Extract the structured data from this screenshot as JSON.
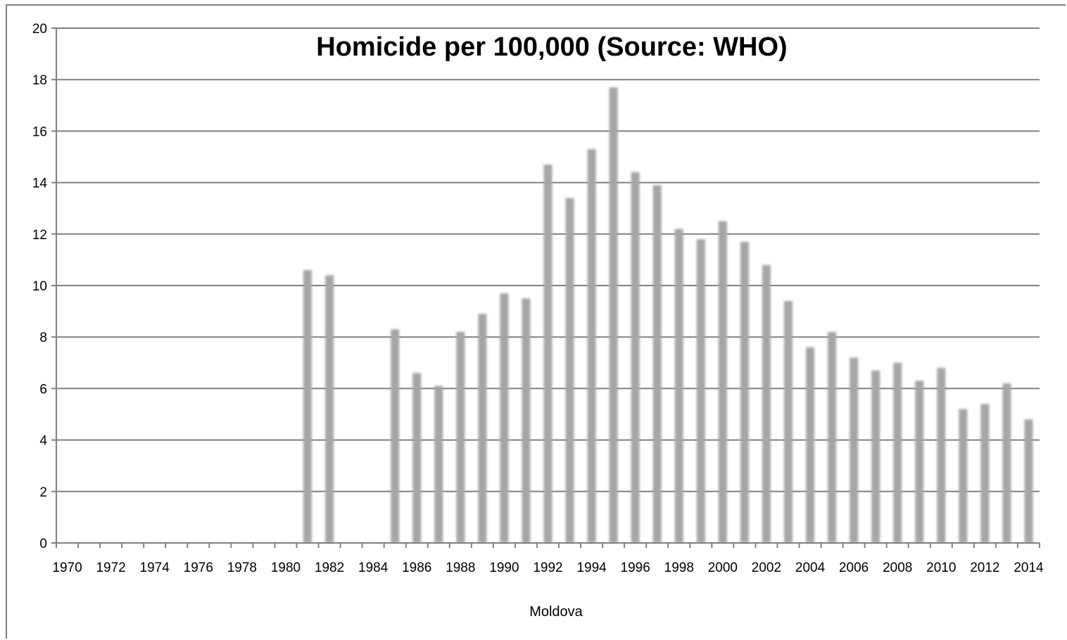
{
  "chart_data": {
    "type": "bar",
    "title": "Homicide per 100,000 (Source: WHO)",
    "xlabel": "Moldova",
    "ylabel": "",
    "ylim": [
      0,
      20
    ],
    "yticks": [
      0,
      2,
      4,
      6,
      8,
      10,
      12,
      14,
      16,
      18,
      20
    ],
    "grid": true,
    "legend": "none",
    "tick_label_years": [
      "1970",
      "1972",
      "1974",
      "1976",
      "1978",
      "1980",
      "1982",
      "1984",
      "1986",
      "1988",
      "1990",
      "1992",
      "1994",
      "1996",
      "1998",
      "2000",
      "2002",
      "2004",
      "2006",
      "2008",
      "2010",
      "2012",
      "2014"
    ],
    "categories": [
      "1970",
      "1971",
      "1972",
      "1973",
      "1974",
      "1975",
      "1976",
      "1977",
      "1978",
      "1979",
      "1980",
      "1981",
      "1982",
      "1983",
      "1984",
      "1985",
      "1986",
      "1987",
      "1988",
      "1989",
      "1990",
      "1991",
      "1992",
      "1993",
      "1994",
      "1995",
      "1996",
      "1997",
      "1998",
      "1999",
      "2000",
      "2001",
      "2002",
      "2003",
      "2004",
      "2005",
      "2006",
      "2007",
      "2008",
      "2009",
      "2010",
      "2011",
      "2012",
      "2013",
      "2014"
    ],
    "values": [
      null,
      null,
      null,
      null,
      null,
      null,
      null,
      null,
      null,
      null,
      null,
      10.6,
      10.4,
      null,
      null,
      8.3,
      6.6,
      6.1,
      8.2,
      8.9,
      9.7,
      9.5,
      14.7,
      13.4,
      15.3,
      17.7,
      14.4,
      13.9,
      12.2,
      11.8,
      12.5,
      11.7,
      10.8,
      9.4,
      7.6,
      8.2,
      7.2,
      6.7,
      7.0,
      6.3,
      6.8,
      5.2,
      5.4,
      6.2,
      4.8
    ],
    "colors": {
      "bar": "#a6a6a6",
      "grid": "#808080",
      "axis": "#808080"
    }
  }
}
